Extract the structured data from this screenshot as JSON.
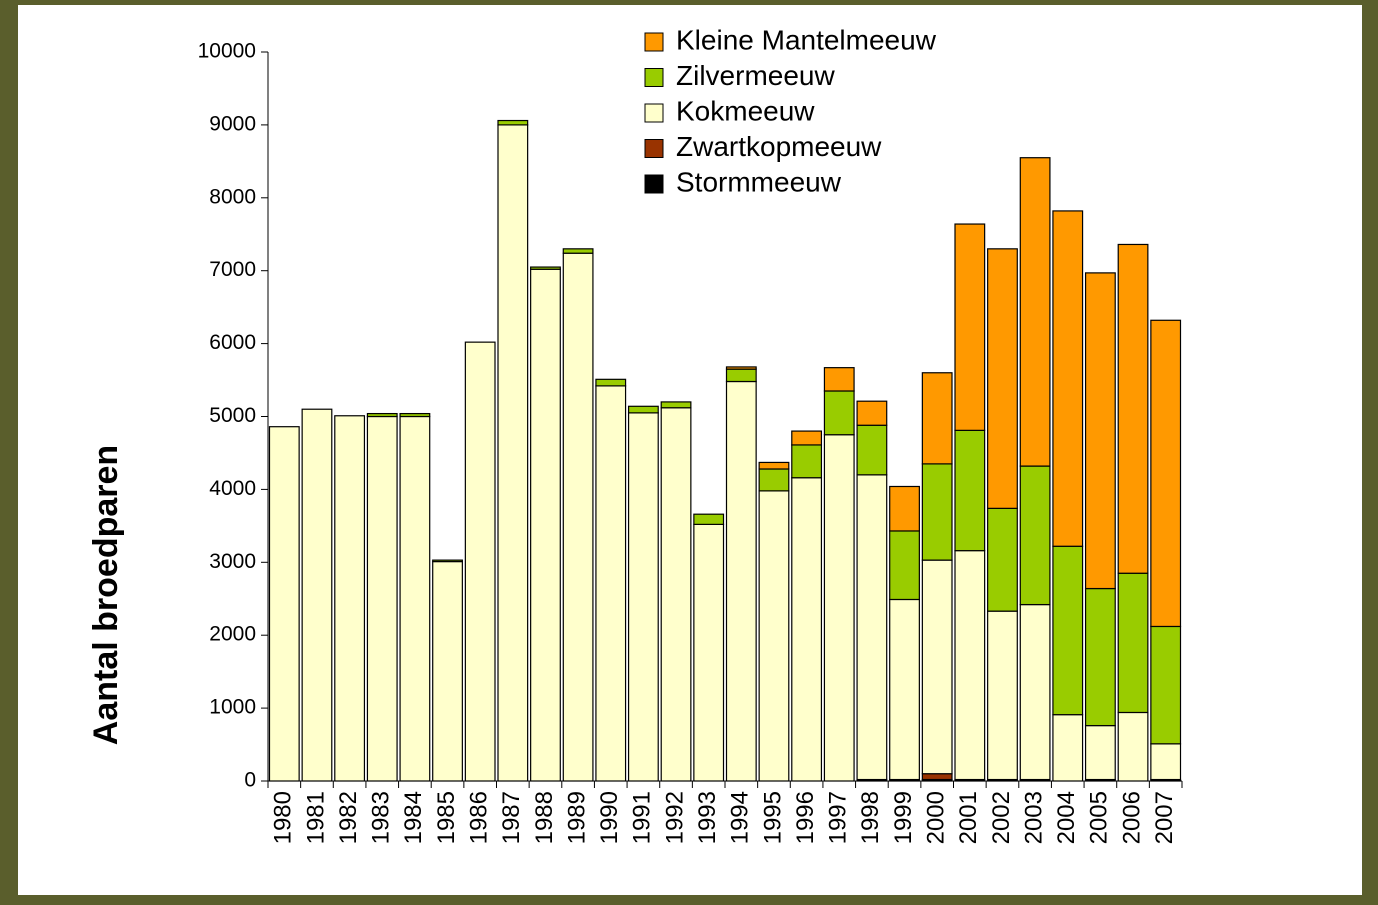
{
  "chart_data": {
    "type": "bar",
    "stacked": true,
    "ylabel": "Aantal broedparen",
    "categories": [
      "1980",
      "1981",
      "1982",
      "1983",
      "1984",
      "1985",
      "1986",
      "1987",
      "1988",
      "1989",
      "1990",
      "1991",
      "1992",
      "1993",
      "1994",
      "1995",
      "1996",
      "1997",
      "1998",
      "1999",
      "2000",
      "2001",
      "2002",
      "2003",
      "2004",
      "2005",
      "2006",
      "2007"
    ],
    "series": [
      {
        "name": "Kleine Mantelmeeuw",
        "color": "#FF9900",
        "values": [
          0,
          0,
          0,
          0,
          0,
          0,
          0,
          0,
          0,
          0,
          0,
          0,
          0,
          0,
          30,
          90,
          190,
          320,
          330,
          610,
          1250,
          2830,
          3560,
          4230,
          4600,
          4330,
          4510,
          4200
        ]
      },
      {
        "name": "Zilvermeeuw",
        "color": "#99CC00",
        "values": [
          0,
          0,
          0,
          40,
          40,
          20,
          0,
          60,
          30,
          60,
          90,
          90,
          80,
          140,
          170,
          300,
          450,
          600,
          680,
          940,
          1320,
          1650,
          1410,
          1900,
          2310,
          1880,
          1910,
          1610
        ]
      },
      {
        "name": "Kokmeeuw",
        "color": "#FFFFCC",
        "values": [
          4860,
          5100,
          5010,
          5000,
          5000,
          3010,
          6020,
          9000,
          7020,
          7240,
          5420,
          5050,
          5120,
          3520,
          5480,
          3980,
          4160,
          4750,
          4180,
          2470,
          2930,
          3140,
          2310,
          2400,
          910,
          740,
          940,
          490
        ]
      },
      {
        "name": "Zwartkopmeeuw",
        "color": "#993300",
        "values": [
          0,
          0,
          0,
          0,
          0,
          0,
          0,
          0,
          0,
          0,
          0,
          0,
          0,
          0,
          0,
          0,
          0,
          0,
          0,
          0,
          80,
          0,
          0,
          0,
          0,
          0,
          0,
          0
        ]
      },
      {
        "name": "Stormmeeuw",
        "color": "#000000",
        "values": [
          0,
          0,
          0,
          0,
          0,
          0,
          0,
          0,
          0,
          0,
          0,
          0,
          0,
          0,
          0,
          0,
          0,
          0,
          20,
          20,
          20,
          20,
          20,
          20,
          0,
          20,
          0,
          20
        ]
      }
    ],
    "ylim": [
      0,
      10000
    ],
    "yticks": [
      0,
      1000,
      2000,
      3000,
      4000,
      5000,
      6000,
      7000,
      8000,
      9000,
      10000
    ]
  }
}
